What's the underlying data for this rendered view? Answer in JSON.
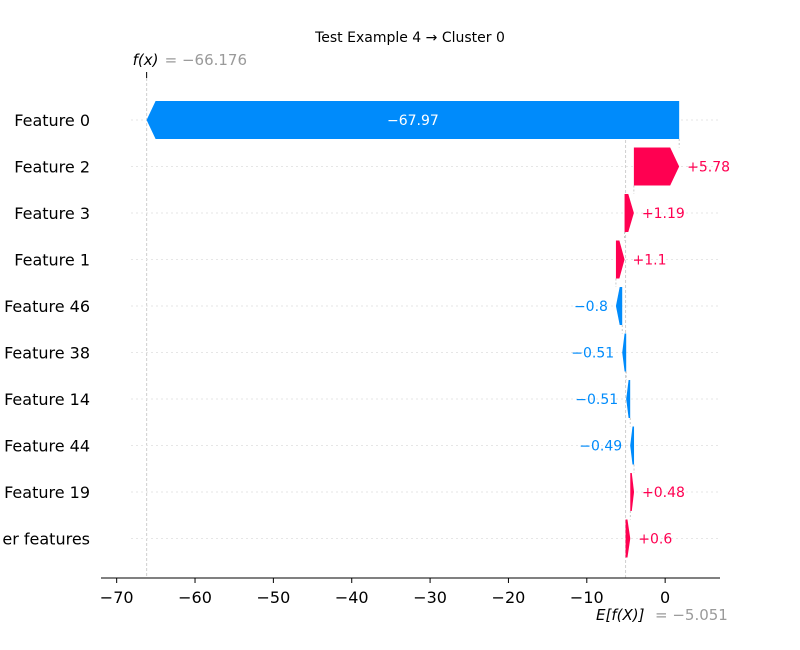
{
  "chart_data": {
    "type": "waterfall",
    "title": "Test Example 4 → Cluster 0",
    "fx": {
      "label": "f(x)",
      "value_text": "= −66.176",
      "value": -66.176
    },
    "base": {
      "label": "E[f(X)]",
      "value_text": "= −5.051",
      "value": -5.051
    },
    "xlim": [
      -72,
      7
    ],
    "xticks": [
      -70,
      -60,
      -50,
      -40,
      -30,
      -20,
      -10,
      0
    ],
    "xtick_labels": [
      "−70",
      "−60",
      "−50",
      "−40",
      "−30",
      "−20",
      "−10",
      "0"
    ],
    "colors": {
      "positive": "#ff0051",
      "negative": "#008bfb",
      "label_inside": "#ffffff"
    },
    "features": [
      {
        "name": "Feature 0",
        "value": -67.97,
        "label": "−67.97"
      },
      {
        "name": "Feature 2",
        "value": 5.78,
        "label": "+5.78"
      },
      {
        "name": "Feature 3",
        "value": 1.19,
        "label": "+1.19"
      },
      {
        "name": "Feature 1",
        "value": 1.1,
        "label": "+1.1"
      },
      {
        "name": "Feature 46",
        "value": -0.8,
        "label": "−0.8"
      },
      {
        "name": "Feature 38",
        "value": -0.51,
        "label": "−0.51"
      },
      {
        "name": "Feature 14",
        "value": -0.51,
        "label": "−0.51"
      },
      {
        "name": "Feature 44",
        "value": -0.49,
        "label": "−0.49"
      },
      {
        "name": "Feature 19",
        "value": 0.48,
        "label": "+0.48"
      },
      {
        "name": "er features",
        "value": 0.6,
        "label": "+0.6"
      }
    ]
  }
}
